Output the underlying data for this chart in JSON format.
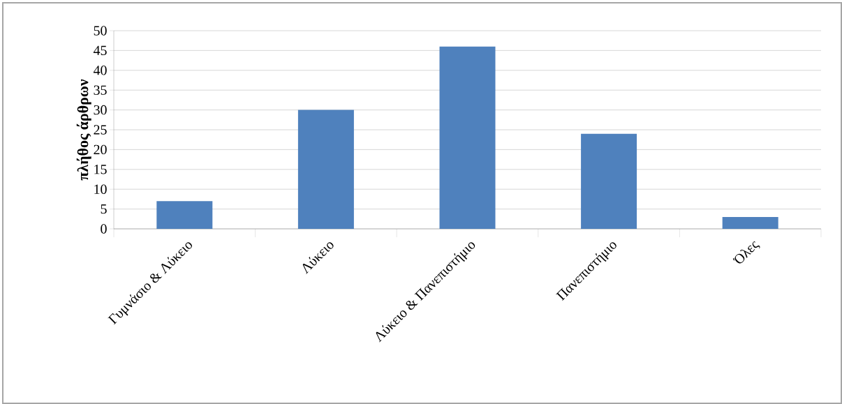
{
  "chart_data": {
    "type": "bar",
    "ylabel": "πλήθος άρθρων",
    "categories": [
      "Γυμνάσιο & Λύκειο",
      "Λύκειο",
      "Λύκειο & Πανεπιστήμιο",
      "Πανεπιστήμιο",
      "Όλες"
    ],
    "values": [
      7,
      30,
      46,
      24,
      3
    ],
    "color": "#4f81bd",
    "ylim": [
      0,
      50
    ],
    "yticks": [
      0,
      5,
      10,
      15,
      20,
      25,
      30,
      35,
      40,
      45,
      50
    ],
    "grid": "y"
  }
}
